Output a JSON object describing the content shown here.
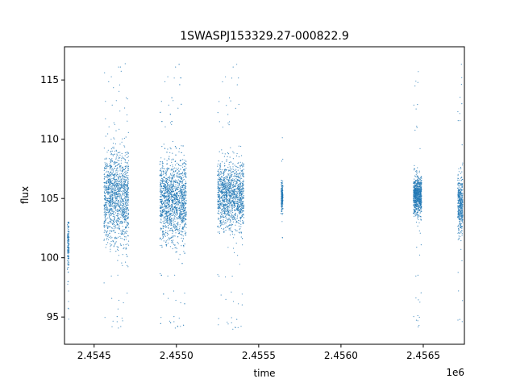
{
  "chart_data": {
    "type": "scatter",
    "title": "1SWASPJ153329.27-000822.9",
    "xlabel": "time",
    "ylabel": "flux",
    "x_offset_label": "1e6",
    "xlim": [
      2454320,
      2456750
    ],
    "ylim": [
      92.7,
      117.8
    ],
    "x_ticks": [
      {
        "value": 2454500,
        "label": "2.4545"
      },
      {
        "value": 2455000,
        "label": "2.4550"
      },
      {
        "value": 2455500,
        "label": "2.4555"
      },
      {
        "value": 2456000,
        "label": "2.4560"
      },
      {
        "value": 2456500,
        "label": "2.4565"
      }
    ],
    "y_ticks": [
      {
        "value": 95,
        "label": "95"
      },
      {
        "value": 100,
        "label": "100"
      },
      {
        "value": 105,
        "label": "105"
      },
      {
        "value": 110,
        "label": "110"
      },
      {
        "value": 115,
        "label": "115"
      }
    ],
    "grid": false,
    "legend": "none",
    "marker_color": "#1f77b4",
    "series": [
      {
        "segments": [
          {
            "x_start": 2454338,
            "x_end": 2454348,
            "center": 101.0,
            "spread": 2.0,
            "y_min": 94.6,
            "y_max": 103.0,
            "density": 0.1
          },
          {
            "x_start": 2454560,
            "x_end": 2454710,
            "center": 105.2,
            "spread": 3.6,
            "y_min": 93.8,
            "y_max": 116.7,
            "density": 1.0
          },
          {
            "x_start": 2454900,
            "x_end": 2455060,
            "center": 104.9,
            "spread": 3.2,
            "y_min": 93.8,
            "y_max": 116.7,
            "density": 1.2
          },
          {
            "x_start": 2455250,
            "x_end": 2455410,
            "center": 105.3,
            "spread": 2.6,
            "y_min": 93.7,
            "y_max": 116.7,
            "density": 1.0
          },
          {
            "x_start": 2455637,
            "x_end": 2455647,
            "center": 105.2,
            "spread": 1.2,
            "y_min": 101.5,
            "y_max": 112.0,
            "density": 0.15
          },
          {
            "x_start": 2456440,
            "x_end": 2456490,
            "center": 105.3,
            "spread": 1.5,
            "y_min": 93.9,
            "y_max": 116.3,
            "density": 0.55
          },
          {
            "x_start": 2456710,
            "x_end": 2456740,
            "center": 104.4,
            "spread": 2.3,
            "y_min": 94.1,
            "y_max": 116.7,
            "density": 0.3
          }
        ]
      }
    ]
  }
}
